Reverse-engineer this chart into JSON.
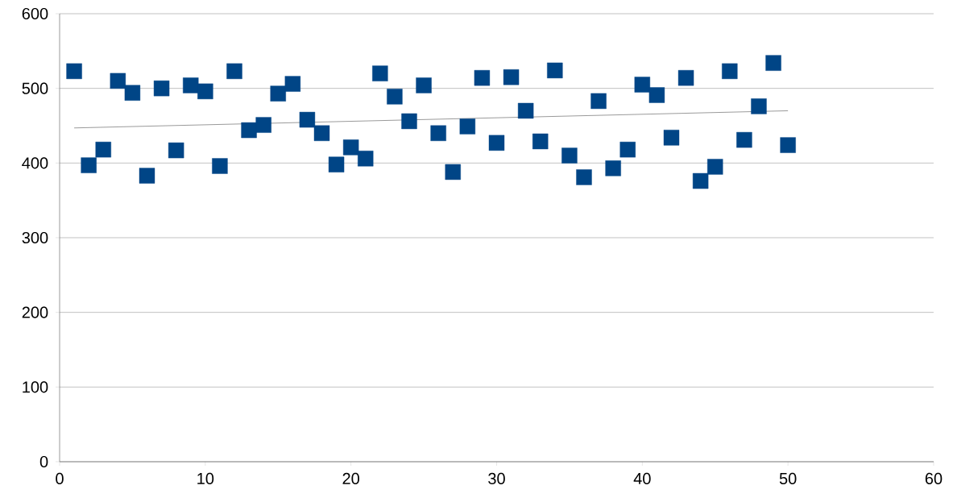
{
  "chart_data": {
    "type": "scatter",
    "grid": "y",
    "xlim": [
      0,
      60
    ],
    "xticks": [
      0,
      10,
      20,
      30,
      40,
      50,
      60
    ],
    "ylim": [
      0,
      600
    ],
    "yticks": [
      0,
      100,
      200,
      300,
      400,
      500,
      600
    ],
    "series": [
      {
        "marker": "square",
        "color": "#004586",
        "x": [
          1,
          2,
          3,
          4,
          5,
          6,
          7,
          8,
          9,
          10,
          11,
          12,
          13,
          14,
          15,
          16,
          17,
          18,
          19,
          20,
          21,
          22,
          23,
          24,
          25,
          26,
          27,
          28,
          29,
          30,
          31,
          32,
          33,
          34,
          35,
          36,
          37,
          38,
          39,
          40,
          41,
          42,
          43,
          44,
          45,
          46,
          47,
          48,
          49,
          50
        ],
        "values": [
          523,
          397,
          418,
          510,
          494,
          383,
          500,
          417,
          504,
          496,
          396,
          523,
          444,
          451,
          493,
          506,
          458,
          440,
          398,
          421,
          406,
          520,
          489,
          456,
          504,
          440,
          388,
          449,
          514,
          427,
          515,
          470,
          429,
          524,
          410,
          381,
          483,
          393,
          418,
          505,
          491,
          434,
          514,
          376,
          395,
          523,
          431,
          476,
          534,
          424
        ]
      },
      {
        "type": "line",
        "marker": "none",
        "color": "#808080",
        "x": [
          1,
          50
        ],
        "values": [
          447,
          470
        ]
      }
    ]
  }
}
